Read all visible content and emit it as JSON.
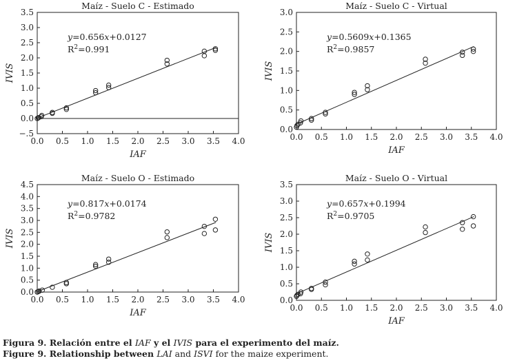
{
  "chart_data": [
    {
      "type": "scatter",
      "title": "Maíz - Suelo C - Estimado",
      "xlabel": "IAF",
      "ylabel": "IVIS",
      "xlim": [
        0,
        4
      ],
      "ylim": [
        -0.5,
        3.5
      ],
      "xticks": [
        "0.0",
        "0.5",
        "1.0",
        "1.5",
        "2.0",
        "2.5",
        "3.0",
        "3.5",
        "4.0"
      ],
      "yticks": [
        "−.5",
        "0.0",
        "0.5",
        "1.0",
        "1.5",
        "2.0",
        "2.5",
        "3.0",
        "3.5"
      ],
      "zero_line": true,
      "fit": {
        "slope": 0.656,
        "intercept": 0.0127,
        "x_range": [
          0,
          3.55
        ]
      },
      "equation_label": {
        "y": "y",
        "eq": "=0.656",
        "x": "x",
        "rest": "+0.0127"
      },
      "r2_label": "0.991",
      "points": [
        {
          "x": 0,
          "y": 0
        },
        {
          "x": 0.02,
          "y": 0.02
        },
        {
          "x": 0.03,
          "y": 0.03
        },
        {
          "x": 0.08,
          "y": 0.06
        },
        {
          "x": 0.09,
          "y": 0.1
        },
        {
          "x": 0.3,
          "y": 0.17
        },
        {
          "x": 0.3,
          "y": 0.2
        },
        {
          "x": 0.58,
          "y": 0.3
        },
        {
          "x": 0.58,
          "y": 0.35
        },
        {
          "x": 1.16,
          "y": 0.85
        },
        {
          "x": 1.16,
          "y": 0.92
        },
        {
          "x": 1.42,
          "y": 1.02
        },
        {
          "x": 1.42,
          "y": 1.1
        },
        {
          "x": 2.58,
          "y": 1.8
        },
        {
          "x": 2.58,
          "y": 1.92
        },
        {
          "x": 3.32,
          "y": 2.07
        },
        {
          "x": 3.32,
          "y": 2.22
        },
        {
          "x": 3.54,
          "y": 2.25
        },
        {
          "x": 3.54,
          "y": 2.3
        }
      ]
    },
    {
      "type": "scatter",
      "title": "Maíz - Suelo C - Virtual",
      "xlabel": "IAF",
      "ylabel": "IVIS",
      "xlim": [
        0,
        4
      ],
      "ylim": [
        0,
        3
      ],
      "xticks": [
        "0.0",
        "0.5",
        "1.0",
        "1.5",
        "2.0",
        "2.5",
        "3.0",
        "3.5",
        "4.0"
      ],
      "yticks": [
        "0.0",
        "0.5",
        "1.0",
        "1.5",
        "2.0",
        "2.5",
        "3.0"
      ],
      "zero_line": false,
      "fit": {
        "slope": 0.5609,
        "intercept": 0.1365,
        "x_range": [
          0,
          3.55
        ]
      },
      "equation_label": {
        "y": "y",
        "eq": "=0.5609",
        "x": "x",
        "rest": "+0.1365"
      },
      "r2_label": "0.9857",
      "points": [
        {
          "x": 0,
          "y": 0.06
        },
        {
          "x": 0.01,
          "y": 0.1
        },
        {
          "x": 0.03,
          "y": 0.13
        },
        {
          "x": 0.08,
          "y": 0.17
        },
        {
          "x": 0.09,
          "y": 0.22
        },
        {
          "x": 0.3,
          "y": 0.24
        },
        {
          "x": 0.3,
          "y": 0.28
        },
        {
          "x": 0.58,
          "y": 0.4
        },
        {
          "x": 0.58,
          "y": 0.44
        },
        {
          "x": 1.16,
          "y": 0.9
        },
        {
          "x": 1.16,
          "y": 0.95
        },
        {
          "x": 1.42,
          "y": 1.02
        },
        {
          "x": 1.42,
          "y": 1.12
        },
        {
          "x": 2.58,
          "y": 1.7
        },
        {
          "x": 2.58,
          "y": 1.8
        },
        {
          "x": 3.32,
          "y": 1.9
        },
        {
          "x": 3.32,
          "y": 1.98
        },
        {
          "x": 3.54,
          "y": 2.0
        },
        {
          "x": 3.54,
          "y": 2.06
        }
      ]
    },
    {
      "type": "scatter",
      "title": "Maíz - Suelo O - Estimado",
      "xlabel": "IAF",
      "ylabel": "IVIS",
      "xlim": [
        0,
        4
      ],
      "ylim": [
        0,
        4.5
      ],
      "xticks": [
        "0.0",
        "0.5",
        "1.0",
        "1.5",
        "2.0",
        "2.5",
        "3.0",
        "3.5",
        "4.0"
      ],
      "yticks": [
        "0.0",
        "0.5",
        "1.0",
        "1.5",
        "2.0",
        "2.5",
        "3.0",
        "3.5",
        "4.0",
        "4.5"
      ],
      "zero_line": false,
      "fit": {
        "slope": 0.817,
        "intercept": 0.0174,
        "x_range": [
          0,
          3.55
        ]
      },
      "equation_label": {
        "y": "y",
        "eq": "=0.817",
        "x": "x",
        "rest": "+0.0174"
      },
      "r2_label": "0.9782",
      "points": [
        {
          "x": 0,
          "y": 0
        },
        {
          "x": 0.02,
          "y": 0.02
        },
        {
          "x": 0.04,
          "y": 0.04
        },
        {
          "x": 0.1,
          "y": 0.08
        },
        {
          "x": 0.3,
          "y": 0.2
        },
        {
          "x": 0.58,
          "y": 0.35
        },
        {
          "x": 0.58,
          "y": 0.4
        },
        {
          "x": 1.16,
          "y": 1.08
        },
        {
          "x": 1.16,
          "y": 1.15
        },
        {
          "x": 1.42,
          "y": 1.25
        },
        {
          "x": 1.42,
          "y": 1.38
        },
        {
          "x": 2.58,
          "y": 2.28
        },
        {
          "x": 2.58,
          "y": 2.52
        },
        {
          "x": 3.32,
          "y": 2.45
        },
        {
          "x": 3.32,
          "y": 2.75
        },
        {
          "x": 3.54,
          "y": 2.6
        },
        {
          "x": 3.54,
          "y": 3.05
        }
      ]
    },
    {
      "type": "scatter",
      "title": "Maíz - Suelo O - Virtual",
      "xlabel": "IAF",
      "ylabel": "IVIS",
      "xlim": [
        0,
        4
      ],
      "ylim": [
        0,
        3.5
      ],
      "xticks": [
        "0.0",
        "0.5",
        "1.0",
        "1.5",
        "2.0",
        "2.5",
        "3.0",
        "3.5",
        "4.0"
      ],
      "yticks": [
        "0.0",
        "0.5",
        "1.0",
        "1.5",
        "2.0",
        "2.5",
        "3.0",
        "3.5"
      ],
      "zero_line": false,
      "fit": {
        "slope": 0.657,
        "intercept": 0.1994,
        "x_range": [
          0,
          3.55
        ]
      },
      "equation_label": {
        "y": "y",
        "eq": "=0.657",
        "x": "x",
        "rest": "+0.1994"
      },
      "r2_label": "0.9705",
      "points": [
        {
          "x": 0,
          "y": 0.12
        },
        {
          "x": 0.01,
          "y": 0.15
        },
        {
          "x": 0.03,
          "y": 0.18
        },
        {
          "x": 0.08,
          "y": 0.2
        },
        {
          "x": 0.09,
          "y": 0.25
        },
        {
          "x": 0.3,
          "y": 0.33
        },
        {
          "x": 0.3,
          "y": 0.36
        },
        {
          "x": 0.58,
          "y": 0.47
        },
        {
          "x": 0.58,
          "y": 0.55
        },
        {
          "x": 1.16,
          "y": 1.1
        },
        {
          "x": 1.16,
          "y": 1.18
        },
        {
          "x": 1.42,
          "y": 1.22
        },
        {
          "x": 1.42,
          "y": 1.4
        },
        {
          "x": 2.58,
          "y": 2.05
        },
        {
          "x": 2.58,
          "y": 2.22
        },
        {
          "x": 3.32,
          "y": 2.15
        },
        {
          "x": 3.32,
          "y": 2.35
        },
        {
          "x": 3.54,
          "y": 2.25
        },
        {
          "x": 3.54,
          "y": 2.53
        }
      ]
    }
  ],
  "caption": {
    "line1": {
      "lead": "Figura 9. Relación entre el ",
      "term1": "IAF",
      "mid": " y el ",
      "term2": "IVIS",
      "tail": " para el experimento del maíz."
    },
    "line2": {
      "lead": "Figure 9.  Relationship between ",
      "term1": "LAI",
      "mid": " and ",
      "term2": "ISVI",
      "tail": " for the maize experiment."
    }
  }
}
